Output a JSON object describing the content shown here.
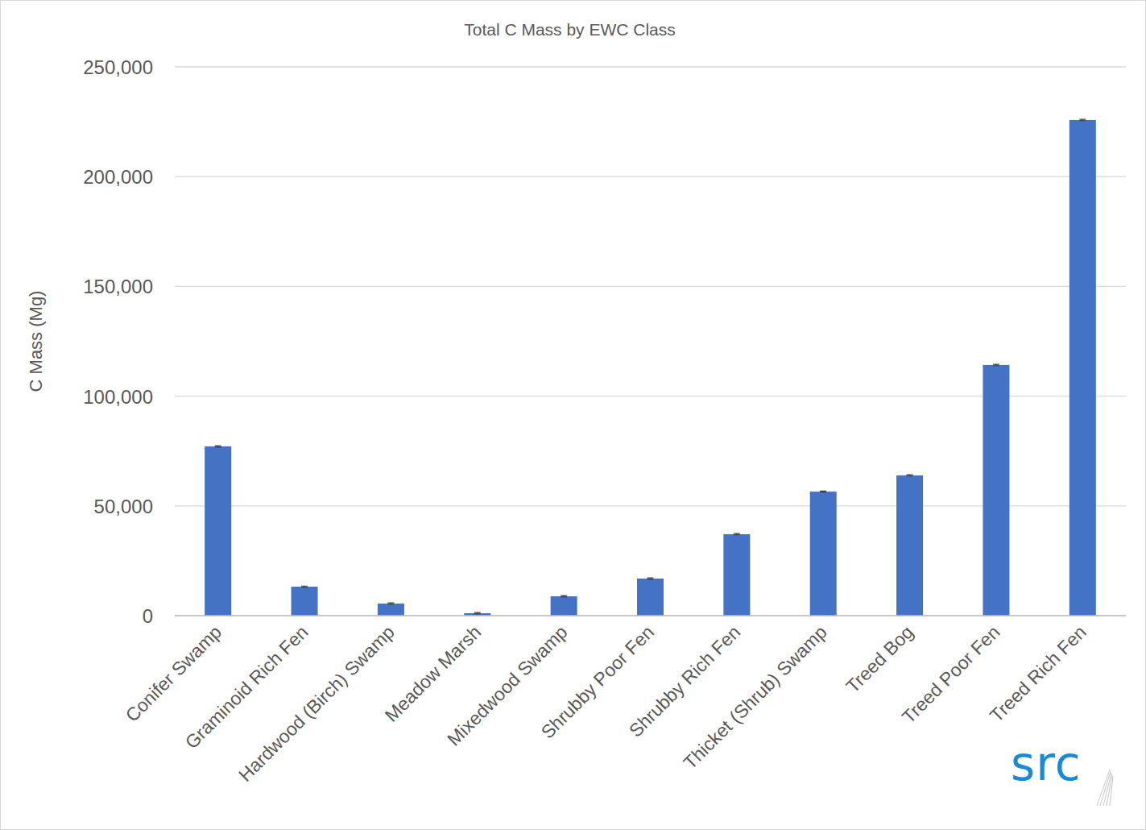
{
  "chart_data": {
    "type": "bar",
    "title": "Total C Mass by EWC Class",
    "y_label": "C Mass (Mg)",
    "categories": [
      "Conifer Swamp",
      "Graminoid Rich Fen",
      "Hardwood (Birch) Swamp",
      "Meadow Marsh",
      "Mixedwood Swamp",
      "Shrubby Poor Fen",
      "Shrubby Rich Fen",
      "Thicket (Shrub) Swamp",
      "Treed Bog",
      "Treed Poor Fen",
      "Treed Rich Fen"
    ],
    "values": [
      77100,
      13200,
      5500,
      1100,
      8800,
      16900,
      37100,
      56500,
      63900,
      114200,
      225800
    ],
    "errors": [
      300,
      300,
      300,
      300,
      300,
      300,
      300,
      300,
      300,
      300,
      300
    ],
    "color": "#4472c4",
    "ylim": [
      0,
      250000
    ],
    "yticks": [
      0,
      {
        "value": 50000,
        "label": "50,000"
      },
      {
        "value": 100000,
        "label": "100,000"
      },
      {
        "value": 150000,
        "label": "150,000"
      },
      {
        "value": 200000,
        "label": "200,000"
      },
      {
        "value": 250000,
        "label": "250,000"
      }
    ],
    "grid": true,
    "logo_text": "src"
  }
}
